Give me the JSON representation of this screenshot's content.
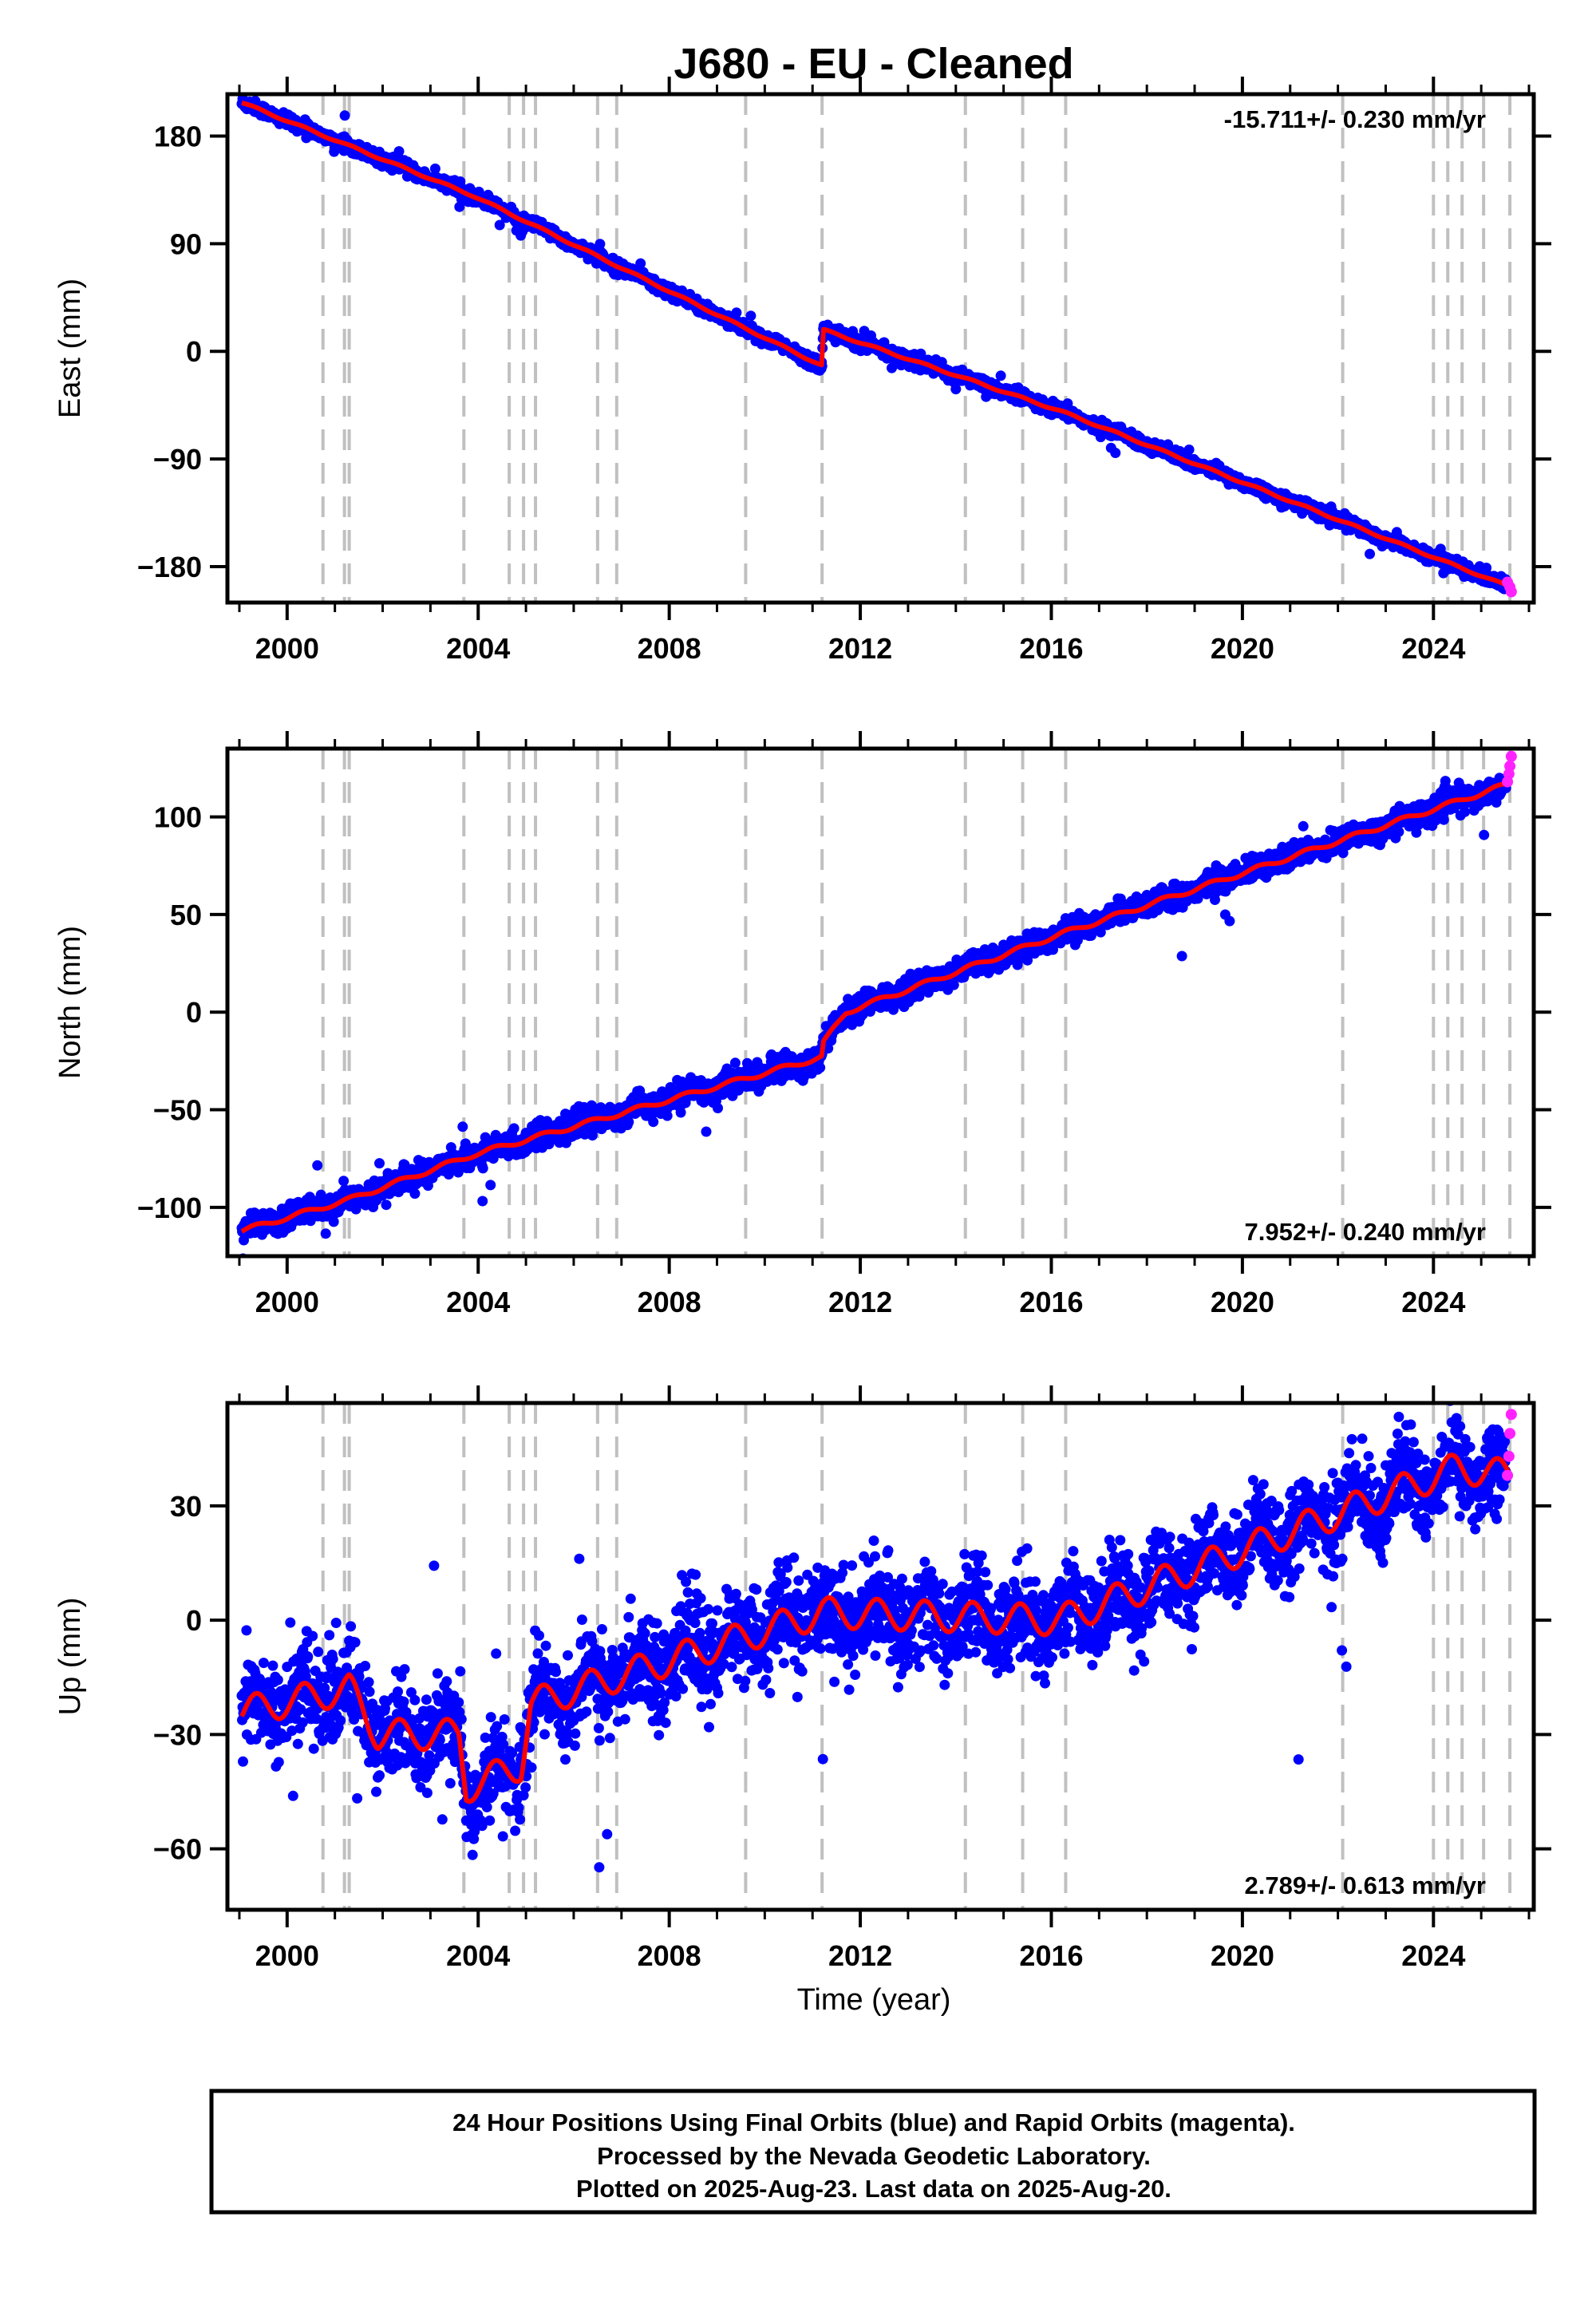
{
  "title": "J680  - EU - Cleaned",
  "colors": {
    "final": "#0000ff",
    "rapid": "#ff22ff",
    "model": "#ff0000",
    "events": "#c0c0c0"
  },
  "chart_data": [
    {
      "type": "scatter",
      "name": "east",
      "ylabel": "East (mm)",
      "xlim": [
        1998.75,
        2026.1
      ],
      "ylim": [
        -210,
        215
      ],
      "xticks": [
        2000,
        2004,
        2008,
        2012,
        2016,
        2020,
        2024
      ],
      "yticks": [
        -180,
        -90,
        0,
        90,
        180
      ],
      "ytick_labels": [
        "−180",
        "−90",
        "0",
        "90",
        "180"
      ],
      "rate": "-15.711+/- 0.230 mm/yr",
      "rate_position": "top-right",
      "trend_points": [
        [
          1999.05,
          208
        ],
        [
          2003.9,
          130
        ],
        [
          2011.2,
          -12
        ],
        [
          2011.22,
          18
        ],
        [
          2016.2,
          -50
        ],
        [
          2025.6,
          -197
        ]
      ],
      "noise_mm": 2.5,
      "rapid_points": [
        [
          2025.55,
          -193
        ],
        [
          2025.6,
          -197
        ],
        [
          2025.63,
          -201
        ]
      ]
    },
    {
      "type": "scatter",
      "name": "north",
      "ylabel": "North (mm)",
      "xlim": [
        1998.75,
        2026.1
      ],
      "ylim": [
        -125,
        135
      ],
      "xticks": [
        2000,
        2004,
        2008,
        2012,
        2016,
        2020,
        2024
      ],
      "yticks": [
        -100,
        -50,
        0,
        50,
        100
      ],
      "ytick_labels": [
        "−100",
        "−50",
        "0",
        "50",
        "100"
      ],
      "rate": "7.952+/- 0.240 mm/yr",
      "rate_position": "bottom-right",
      "trend_points": [
        [
          1999.05,
          -112
        ],
        [
          2001.3,
          -96
        ],
        [
          2003.9,
          -73
        ],
        [
          2011.2,
          -23
        ],
        [
          2011.22,
          -16
        ],
        [
          2011.7,
          0
        ],
        [
          2016.2,
          40
        ],
        [
          2025.6,
          117
        ]
      ],
      "noise_mm": 3,
      "rapid_points": [
        [
          2025.55,
          118
        ],
        [
          2025.58,
          122
        ],
        [
          2025.6,
          126
        ],
        [
          2025.63,
          131
        ]
      ]
    },
    {
      "type": "scatter",
      "name": "up",
      "ylabel": "Up (mm)",
      "xlim": [
        1998.75,
        2026.1
      ],
      "ylim": [
        -76,
        57
      ],
      "xticks": [
        2000,
        2004,
        2008,
        2012,
        2016,
        2020,
        2024
      ],
      "yticks": [
        -60,
        -30,
        0,
        30
      ],
      "ytick_labels": [
        "−60",
        "−30",
        "0",
        "30"
      ],
      "rate": "2.789+/- 0.613 mm/yr",
      "rate_position": "bottom-right",
      "trend_points": [
        [
          1999.05,
          -24
        ],
        [
          2001.3,
          -18
        ],
        [
          2001.9,
          -30
        ],
        [
          2003.6,
          -30
        ],
        [
          2003.75,
          -44
        ],
        [
          2004.9,
          -38
        ],
        [
          2005.1,
          -22
        ],
        [
          2011.2,
          2
        ],
        [
          2016.2,
          0
        ],
        [
          2024.5,
          40
        ],
        [
          2025.6,
          38
        ]
      ],
      "noise_mm": 6,
      "rapid_points": [
        [
          2025.55,
          38
        ],
        [
          2025.58,
          43
        ],
        [
          2025.6,
          49
        ],
        [
          2025.63,
          54
        ]
      ]
    }
  ],
  "event_lines": [
    2000.75,
    2001.2,
    2001.3,
    2003.7,
    2004.65,
    2004.95,
    2005.2,
    2006.5,
    2006.9,
    2009.6,
    2011.2,
    2014.2,
    2015.4,
    2016.3,
    2022.1,
    2024.0,
    2024.3,
    2024.6,
    2025.05,
    2025.6
  ],
  "xlabel": "Time (year)",
  "caption": [
    "24 Hour Positions Using Final Orbits (blue) and Rapid Orbits (magenta).",
    "Processed by the Nevada Geodetic Laboratory.",
    "Plotted on 2025-Aug-23. Last data on 2025-Aug-20."
  ]
}
